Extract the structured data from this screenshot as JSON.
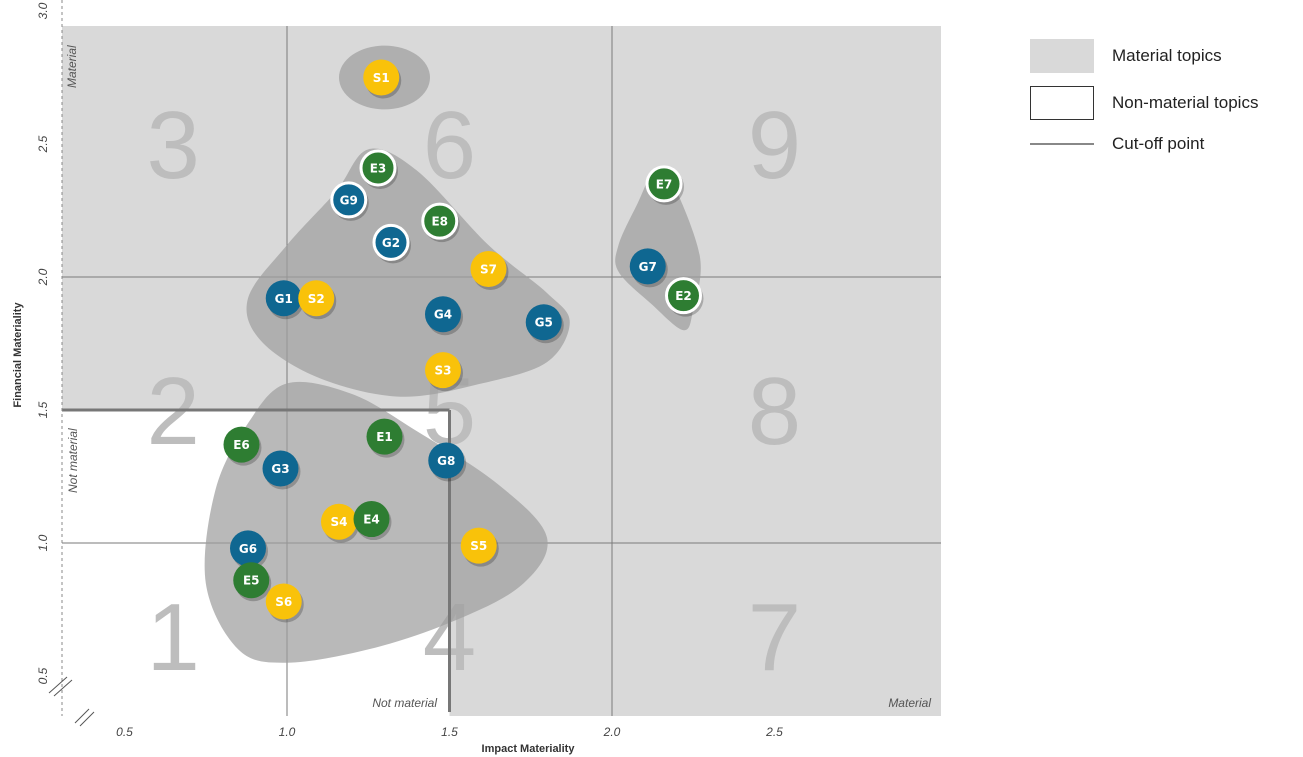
{
  "chart_data": {
    "type": "scatter",
    "xlabel": "Impact Materiality",
    "ylabel": "Financial Materiality",
    "xlim": [
      0.3,
      3.0
    ],
    "ylim": [
      0.3,
      3.0
    ],
    "x_ticks": [
      "0.5",
      "1.0",
      "1.5",
      "2.0",
      "2.5"
    ],
    "y_ticks": [
      "0.5",
      "1.0",
      "1.5",
      "2.0",
      "2.5",
      "3.0"
    ],
    "grid_lines": {
      "x": [
        1.0,
        2.0
      ],
      "y": [
        1.0,
        2.0
      ]
    },
    "cutoff": {
      "x": 1.5,
      "y": 1.5
    },
    "zone_numbers": [
      {
        "label": "1",
        "x": 0.65,
        "y": 0.65
      },
      {
        "label": "2",
        "x": 0.65,
        "y": 1.5
      },
      {
        "label": "3",
        "x": 0.65,
        "y": 2.5
      },
      {
        "label": "4",
        "x": 1.5,
        "y": 0.65
      },
      {
        "label": "5",
        "x": 1.5,
        "y": 1.5
      },
      {
        "label": "6",
        "x": 1.5,
        "y": 2.5
      },
      {
        "label": "7",
        "x": 2.5,
        "y": 0.65
      },
      {
        "label": "8",
        "x": 2.5,
        "y": 1.5
      },
      {
        "label": "9",
        "x": 2.5,
        "y": 2.5
      }
    ],
    "annotations": {
      "top_material": "Material",
      "left_not_material": "Not material",
      "bottom_not_material": "Not material",
      "right_material": "Material"
    },
    "clusters": [
      {
        "name": "cluster-s1",
        "shape": "ellipse",
        "cx": 1.3,
        "cy": 2.75,
        "rx": 0.14,
        "ry": 0.12
      },
      {
        "name": "cluster-main",
        "shape": "path",
        "points": [
          [
            1.25,
            2.48
          ],
          [
            1.4,
            2.4
          ],
          [
            1.62,
            2.12
          ],
          [
            1.8,
            1.94
          ],
          [
            1.87,
            1.83
          ],
          [
            1.8,
            1.68
          ],
          [
            1.6,
            1.6
          ],
          [
            1.35,
            1.55
          ],
          [
            1.1,
            1.62
          ],
          [
            0.92,
            1.76
          ],
          [
            0.88,
            1.92
          ],
          [
            1.0,
            2.12
          ],
          [
            1.15,
            2.32
          ]
        ]
      },
      {
        "name": "cluster-right",
        "shape": "path",
        "points": [
          [
            2.13,
            2.4
          ],
          [
            2.18,
            2.37
          ],
          [
            2.27,
            2.08
          ],
          [
            2.25,
            1.88
          ],
          [
            2.22,
            1.8
          ],
          [
            2.12,
            1.9
          ],
          [
            2.02,
            2.02
          ],
          [
            2.02,
            2.12
          ],
          [
            2.08,
            2.28
          ]
        ]
      },
      {
        "name": "cluster-bottom",
        "shape": "path",
        "points": [
          [
            1.0,
            1.6
          ],
          [
            1.2,
            1.56
          ],
          [
            1.4,
            1.42
          ],
          [
            1.65,
            1.22
          ],
          [
            1.8,
            1.02
          ],
          [
            1.72,
            0.84
          ],
          [
            1.5,
            0.7
          ],
          [
            1.25,
            0.6
          ],
          [
            1.0,
            0.55
          ],
          [
            0.85,
            0.6
          ],
          [
            0.75,
            0.85
          ],
          [
            0.78,
            1.2
          ],
          [
            0.88,
            1.45
          ]
        ]
      }
    ],
    "colors": {
      "E": "#2e7d32",
      "S": "#f9c20a",
      "G": "#0f6791"
    },
    "points": [
      {
        "label": "S1",
        "group": "S",
        "x": 1.29,
        "y": 2.75,
        "ring": false
      },
      {
        "label": "E3",
        "group": "E",
        "x": 1.28,
        "y": 2.41,
        "ring": true
      },
      {
        "label": "G9",
        "group": "G",
        "x": 1.19,
        "y": 2.29,
        "ring": true
      },
      {
        "label": "E8",
        "group": "E",
        "x": 1.47,
        "y": 2.21,
        "ring": true
      },
      {
        "label": "G2",
        "group": "G",
        "x": 1.32,
        "y": 2.13,
        "ring": true
      },
      {
        "label": "S7",
        "group": "S",
        "x": 1.62,
        "y": 2.03,
        "ring": false
      },
      {
        "label": "G1",
        "group": "G",
        "x": 0.99,
        "y": 1.92,
        "ring": false
      },
      {
        "label": "S2",
        "group": "S",
        "x": 1.09,
        "y": 1.92,
        "ring": false
      },
      {
        "label": "G4",
        "group": "G",
        "x": 1.48,
        "y": 1.86,
        "ring": false
      },
      {
        "label": "G5",
        "group": "G",
        "x": 1.79,
        "y": 1.83,
        "ring": false
      },
      {
        "label": "S3",
        "group": "S",
        "x": 1.48,
        "y": 1.65,
        "ring": false
      },
      {
        "label": "E7",
        "group": "E",
        "x": 2.16,
        "y": 2.35,
        "ring": true
      },
      {
        "label": "G7",
        "group": "G",
        "x": 2.11,
        "y": 2.04,
        "ring": false
      },
      {
        "label": "E2",
        "group": "E",
        "x": 2.22,
        "y": 1.93,
        "ring": true
      },
      {
        "label": "E6",
        "group": "E",
        "x": 0.86,
        "y": 1.37,
        "ring": false
      },
      {
        "label": "E1",
        "group": "E",
        "x": 1.3,
        "y": 1.4,
        "ring": false
      },
      {
        "label": "G3",
        "group": "G",
        "x": 0.98,
        "y": 1.28,
        "ring": false
      },
      {
        "label": "G8",
        "group": "G",
        "x": 1.49,
        "y": 1.31,
        "ring": false
      },
      {
        "label": "S4",
        "group": "S",
        "x": 1.16,
        "y": 1.08,
        "ring": false
      },
      {
        "label": "E4",
        "group": "E",
        "x": 1.26,
        "y": 1.09,
        "ring": false
      },
      {
        "label": "S5",
        "group": "S",
        "x": 1.59,
        "y": 0.99,
        "ring": false
      },
      {
        "label": "G6",
        "group": "G",
        "x": 0.88,
        "y": 0.98,
        "ring": false
      },
      {
        "label": "E5",
        "group": "E",
        "x": 0.89,
        "y": 0.86,
        "ring": false
      },
      {
        "label": "S6",
        "group": "S",
        "x": 0.99,
        "y": 0.78,
        "ring": false
      }
    ]
  },
  "legend": {
    "material": "Material topics",
    "non_material": "Non-material topics",
    "cutoff": "Cut-off point"
  }
}
